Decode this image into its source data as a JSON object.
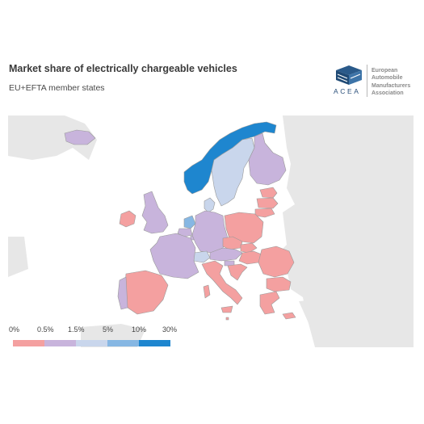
{
  "title": "Market share of electrically chargeable vehicles",
  "subtitle": "EU+EFTA member states",
  "logo": {
    "acronym": "ACEA",
    "org_lines": [
      "European",
      "Automobile",
      "Manufacturers",
      "Association"
    ],
    "icon": "acea-cube-logo"
  },
  "legend": {
    "thresholds": [
      "0%",
      "0.5%",
      "1.5%",
      "5%",
      "10%",
      "30%"
    ],
    "colors": [
      "#f4a0a0",
      "#c8b4dc",
      "#c9d6ec",
      "#86b7e3",
      "#1e86cf"
    ]
  },
  "colors": {
    "background_land": "#e7e7e7",
    "border": "#9a9a9a"
  }
}
